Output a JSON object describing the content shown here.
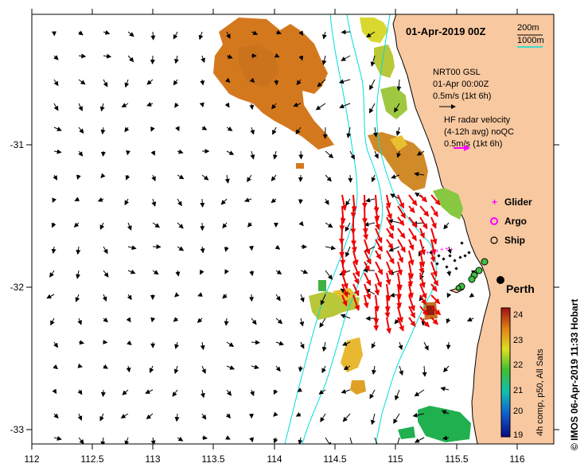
{
  "map": {
    "title": "01-Apr-2019 00Z",
    "depth_legend": {
      "contour_1": "200m",
      "contour_2": "1000m"
    },
    "model_legend": {
      "line1": "NRT00 GSL",
      "line2": "01-Apr 00:00Z",
      "line3": "0.5m/s (1kt 6h)"
    },
    "radar_legend": {
      "line1": "HF radar velocity",
      "line2": "(4-12h avg) noQC",
      "line3": "0.5m/s (1kt 6h)"
    },
    "symbols": {
      "glider": "Glider",
      "argo": "Argo",
      "ship": "Ship"
    },
    "city": "Perth",
    "colorbar": {
      "label": "4h comp, p50, All Sats",
      "ticks": [
        "19",
        "20",
        "21",
        "22",
        "23",
        "24"
      ]
    },
    "credit": "© IMOS 06-Apr-2019 11:33 Hobart",
    "x_ticks": [
      "112",
      "112.5",
      "113",
      "113.5",
      "114",
      "114.5",
      "115",
      "115.5",
      "116"
    ],
    "y_ticks": [
      "-31",
      "-32",
      "-33"
    ],
    "colors": {
      "land": "#f8c8a0",
      "contour": "#00dddd",
      "radar_arrow": "#ee0000",
      "glider": "#ff00ff",
      "sst_warm": "#d4781e",
      "sst_mid": "#f0c020",
      "sst_cool": "#20b050"
    }
  }
}
